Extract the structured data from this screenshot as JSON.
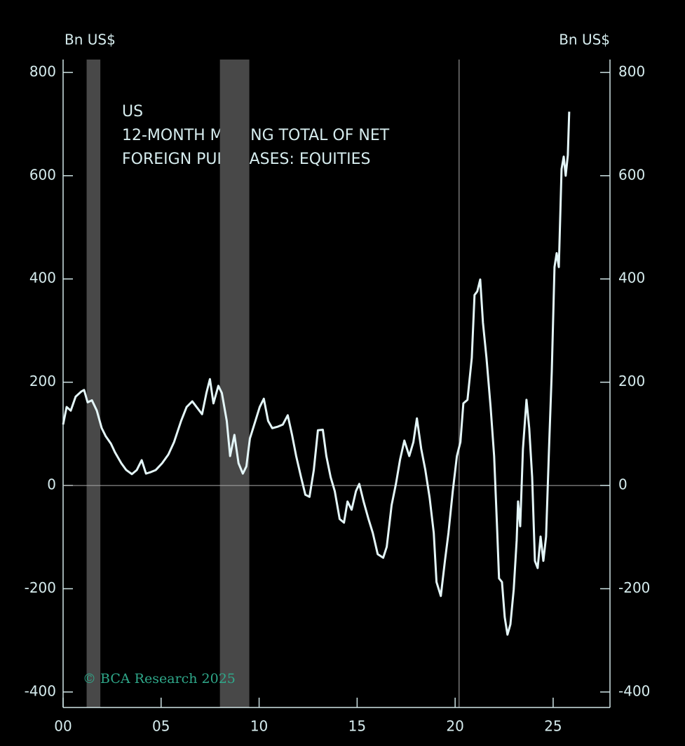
{
  "chart_data": {
    "type": "line",
    "title_lines": [
      "US",
      "12-MONTH MOVING TOTAL OF NET",
      "FOREIGN PURCHASES: EQUITIES"
    ],
    "y_label": "Bn US$",
    "y2_label": "Bn US$",
    "credit": "© BCA Research 2025",
    "xlim": [
      2000,
      2027.9
    ],
    "xticks": [
      {
        "value": 2000,
        "label": "00"
      },
      {
        "value": 2005,
        "label": "05"
      },
      {
        "value": 2010,
        "label": "10"
      },
      {
        "value": 2015,
        "label": "15"
      },
      {
        "value": 2020,
        "label": "20"
      },
      {
        "value": 2025,
        "label": "25"
      }
    ],
    "ylim": [
      -430,
      825
    ],
    "yticks": [
      -400,
      -200,
      0,
      200,
      400,
      600,
      800
    ],
    "y2lim": [
      -430,
      825
    ],
    "y2ticks": [
      -400,
      -200,
      0,
      200,
      400,
      600,
      800
    ],
    "shaded_periods": [
      [
        2001.2,
        2001.9
      ],
      [
        2008.0,
        2009.5
      ]
    ],
    "vline": 2020.2,
    "series": [
      {
        "color": "#e4f6f8",
        "x": [
          2000.0,
          2000.18,
          2000.39,
          2000.64,
          2000.93,
          2001.07,
          2001.25,
          2001.47,
          2001.72,
          2001.97,
          2002.18,
          2002.44,
          2002.65,
          2002.97,
          2003.22,
          2003.51,
          2003.76,
          2004.01,
          2004.23,
          2004.48,
          2004.73,
          2005.05,
          2005.37,
          2005.66,
          2006.02,
          2006.3,
          2006.59,
          2006.81,
          2007.09,
          2007.31,
          2007.49,
          2007.67,
          2007.92,
          2008.1,
          2008.35,
          2008.52,
          2008.74,
          2008.95,
          2009.17,
          2009.35,
          2009.53,
          2009.81,
          2010.03,
          2010.24,
          2010.46,
          2010.67,
          2010.96,
          2011.21,
          2011.46,
          2011.68,
          2011.89,
          2012.14,
          2012.36,
          2012.57,
          2012.79,
          2013.0,
          2013.25,
          2013.43,
          2013.65,
          2013.86,
          2014.11,
          2014.33,
          2014.51,
          2014.72,
          2014.94,
          2015.11,
          2015.33,
          2015.58,
          2015.8,
          2016.05,
          2016.33,
          2016.51,
          2016.76,
          2016.98,
          2017.19,
          2017.41,
          2017.66,
          2017.87,
          2018.05,
          2018.27,
          2018.48,
          2018.7,
          2018.91,
          2019.05,
          2019.27,
          2019.48,
          2019.66,
          2019.88,
          2020.09,
          2020.27,
          2020.42,
          2020.63,
          2020.85,
          2020.99,
          2021.13,
          2021.28,
          2021.42,
          2021.6,
          2021.81,
          2021.99,
          2022.13,
          2022.24,
          2022.39,
          2022.53,
          2022.67,
          2022.82,
          2022.99,
          2023.14,
          2023.21,
          2023.32,
          2023.46,
          2023.64,
          2023.78,
          2023.93,
          2024.07,
          2024.21,
          2024.36,
          2024.5,
          2024.64,
          2024.79,
          2024.93,
          2025.07,
          2025.18,
          2025.29,
          2025.43,
          2025.54,
          2025.64,
          2025.75,
          2025.82
        ],
        "values": [
          118,
          152,
          145,
          172,
          182,
          185,
          161,
          165,
          145,
          111,
          95,
          81,
          64,
          43,
          30,
          22,
          30,
          49,
          23,
          26,
          30,
          43,
          60,
          84,
          125,
          152,
          163,
          152,
          138,
          179,
          206,
          159,
          193,
          179,
          125,
          57,
          98,
          43,
          23,
          37,
          91,
          125,
          152,
          168,
          125,
          111,
          114,
          118,
          136,
          98,
          57,
          16,
          -18,
          -22,
          30,
          107,
          108,
          57,
          16,
          -11,
          -65,
          -72,
          -31,
          -47,
          -11,
          3,
          -31,
          -65,
          -92,
          -133,
          -140,
          -119,
          -38,
          3,
          50,
          87,
          57,
          84,
          130,
          71,
          30,
          -24,
          -92,
          -187,
          -214,
          -146,
          -92,
          -11,
          57,
          84,
          159,
          166,
          247,
          369,
          376,
          399,
          315,
          247,
          152,
          57,
          -72,
          -180,
          -187,
          -255,
          -289,
          -269,
          -201,
          -106,
          -31,
          -79,
          71,
          166,
          111,
          16,
          -146,
          -160,
          -99,
          -146,
          -99,
          71,
          220,
          423,
          450,
          423,
          613,
          637,
          600,
          640,
          724
        ]
      }
    ]
  }
}
